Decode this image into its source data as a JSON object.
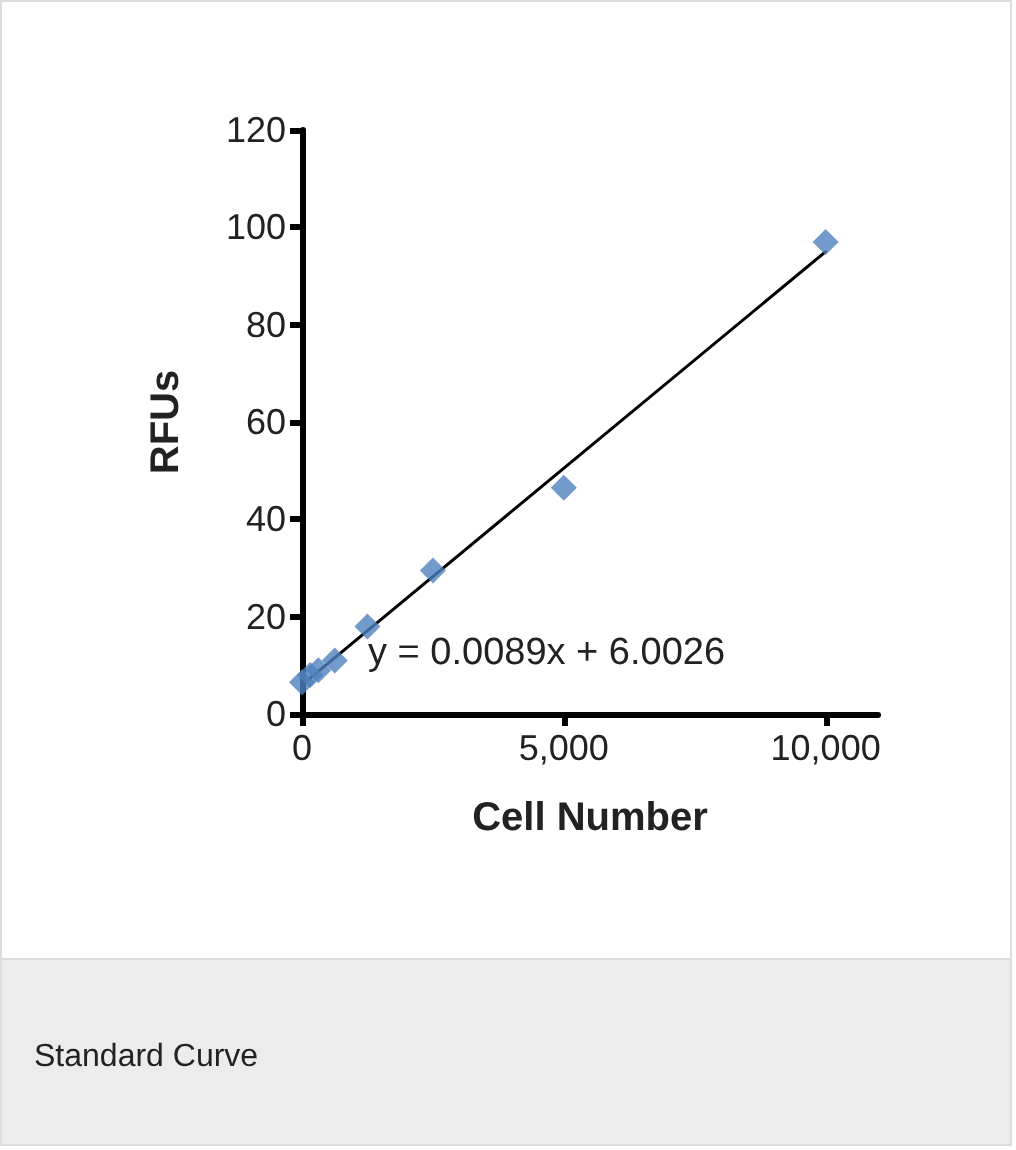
{
  "chart_data": {
    "type": "scatter",
    "xlabel": "Cell Number",
    "ylabel": "RFUs",
    "annotations": [
      "y = 0.0089x + 6.0026",
      "Standard Curve"
    ],
    "xlim": [
      0,
      11000
    ],
    "xticks": [
      0,
      {
        "value": 5000,
        "label": "5,000"
      },
      {
        "value": 10000,
        "label": "10,000"
      }
    ],
    "ylim": [
      0,
      120
    ],
    "yticks": [
      0,
      20,
      40,
      60,
      80,
      100,
      120
    ],
    "grid": false,
    "marker": "diamond",
    "series": [
      {
        "color": "#4f81bd",
        "x": [
          0,
          156,
          312,
          625,
          1250,
          2500,
          5000,
          10000
        ],
        "values": [
          6.5,
          8,
          9,
          11,
          18,
          29.5,
          46.5,
          97
        ]
      },
      {
        "type": "line",
        "color": "#000000",
        "x": [
          0,
          10000
        ],
        "values": [
          6,
          95
        ],
        "marker": "none",
        "line_style": "solid"
      }
    ]
  }
}
